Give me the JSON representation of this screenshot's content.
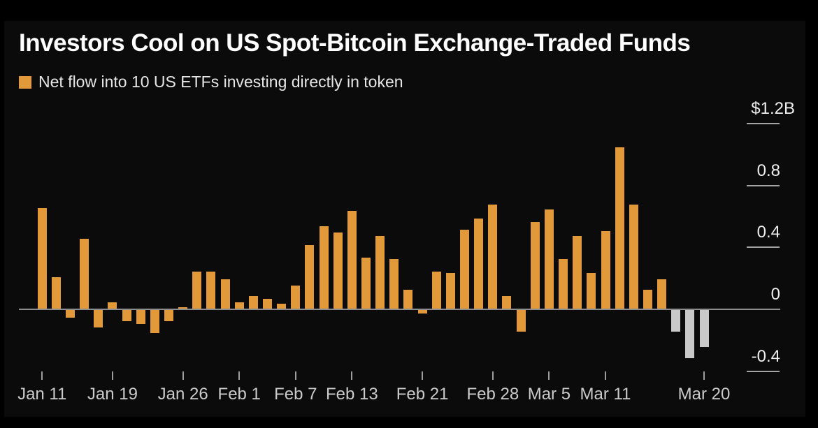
{
  "page": {
    "background": "#000000",
    "panel_background": "#0b0b0b"
  },
  "header": {
    "title": "Investors Cool on US Spot-Bitcoin Exchange-Traded Funds",
    "legend": {
      "swatch_color": "#E2993A",
      "label": "Net flow into 10 US ETFs investing directly in token"
    }
  },
  "chart_data": {
    "type": "bar",
    "title": "Investors Cool on US Spot-Bitcoin Exchange-Traded Funds",
    "series_label": "Net flow into 10 US ETFs investing directly in token",
    "unit": "USD billions",
    "grid": "off",
    "legend_position": "top-left",
    "ylim": [
      -0.4,
      1.2
    ],
    "y_ticks": [
      {
        "label": "$1.2B",
        "value": 1.2
      },
      {
        "label": "0.8",
        "value": 0.8
      },
      {
        "label": "0.4",
        "value": 0.4
      },
      {
        "label": "0",
        "value": 0
      },
      {
        "label": "-0.4",
        "value": -0.4
      }
    ],
    "x_tick_labels": [
      {
        "label": "Jan 11",
        "bar_index": 0
      },
      {
        "label": "Jan 19",
        "bar_index": 5
      },
      {
        "label": "Jan 26",
        "bar_index": 10
      },
      {
        "label": "Feb 1",
        "bar_index": 14
      },
      {
        "label": "Feb 7",
        "bar_index": 18
      },
      {
        "label": "Feb 13",
        "bar_index": 22
      },
      {
        "label": "Feb 21",
        "bar_index": 27
      },
      {
        "label": "Feb 28",
        "bar_index": 32
      },
      {
        "label": "Mar 5",
        "bar_index": 36
      },
      {
        "label": "Mar 11",
        "bar_index": 40
      },
      {
        "label": "Mar 20",
        "bar_index": 47
      }
    ],
    "dates": [
      "Jan 11",
      "Jan 12",
      "Jan 16",
      "Jan 17",
      "Jan 18",
      "Jan 19",
      "Jan 22",
      "Jan 23",
      "Jan 24",
      "Jan 25",
      "Jan 26",
      "Jan 29",
      "Jan 30",
      "Jan 31",
      "Feb 1",
      "Feb 2",
      "Feb 5",
      "Feb 6",
      "Feb 7",
      "Feb 8",
      "Feb 9",
      "Feb 12",
      "Feb 13",
      "Feb 14",
      "Feb 15",
      "Feb 16",
      "Feb 20",
      "Feb 21",
      "Feb 22",
      "Feb 23",
      "Feb 26",
      "Feb 27",
      "Feb 28",
      "Feb 29",
      "Mar 1",
      "Mar 4",
      "Mar 5",
      "Mar 6",
      "Mar 7",
      "Mar 8",
      "Mar 11",
      "Mar 12",
      "Mar 13",
      "Mar 14",
      "Mar 15",
      "Mar 18",
      "Mar 19",
      "Mar 20"
    ],
    "values": [
      0.66,
      0.21,
      -0.06,
      0.46,
      -0.12,
      0.05,
      -0.08,
      -0.1,
      -0.16,
      -0.08,
      0.02,
      0.25,
      0.25,
      0.2,
      0.05,
      0.09,
      0.07,
      0.04,
      0.16,
      0.42,
      0.54,
      0.5,
      0.64,
      0.34,
      0.48,
      0.33,
      0.13,
      -0.03,
      0.25,
      0.24,
      0.52,
      0.59,
      0.68,
      0.09,
      -0.15,
      0.57,
      0.65,
      0.33,
      0.48,
      0.24,
      0.51,
      1.05,
      0.68,
      0.13,
      0.2,
      -0.15,
      -0.32,
      -0.25
    ],
    "bar_color": "#E2993A",
    "recent_bar_color": "#C9C9C9",
    "recent_from_index": 45,
    "axis_color": "#8d8d8d",
    "tick_color": "#a5a5a5"
  }
}
